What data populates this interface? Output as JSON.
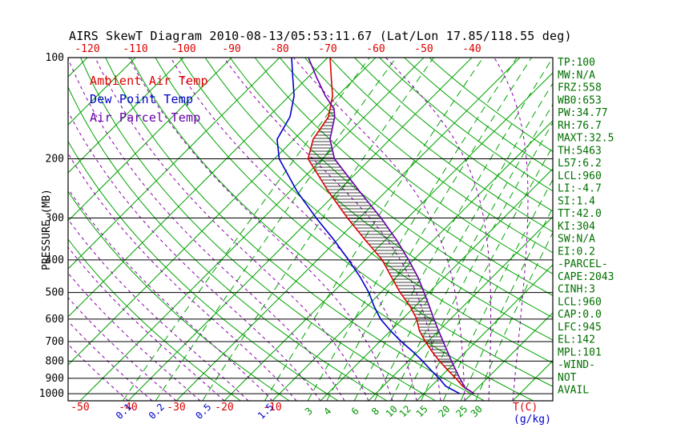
{
  "title": "AIRS SkewT Diagram 2010-08-13/05:53:11.67 (Lat/Lon 17.85/118.55 deg)",
  "legend": {
    "ambient": "Ambient Air Temp",
    "dewpoint": "Dew Point Temp",
    "parcel": "Air Parcel Temp"
  },
  "stats_panel": [
    "TP:100",
    "MW:N/A",
    "FRZ:558",
    "WB0:653",
    "PW:34.77",
    "RH:76.7",
    "MAXT:32.5",
    "TH:5463",
    "L57:6.2",
    "LCL:960",
    "LI:-4.7",
    "SI:1.4",
    "TT:42.0",
    "KI:304",
    "SW:N/A",
    "EI:0.2",
    "-PARCEL-",
    "CAPE:2043",
    "CINH:3",
    "LCL:960",
    "CAP:0.0",
    "LFC:945",
    "EL:142",
    "MPL:101",
    "-WIND-",
    "NOT",
    "AVAIL"
  ],
  "colors": {
    "ambient": "#dd0000",
    "dewpoint": "#0000cc",
    "parcel": "#6600aa",
    "isotherm": "#00a300",
    "dry_adiabat": "#00a300",
    "moist_adiabat": "#8800aa",
    "mixing_ratio": "#00a300",
    "pressure_line": "#000000",
    "axis": "#000000",
    "title": "#000000",
    "stats": "#007000",
    "pressure_label": "#000000",
    "top_temp_label": "#dd0000",
    "bottom_temp_label": "#dd0000",
    "mixing_label_small": "#0000cc",
    "mixing_label_large": "#009300",
    "mixing_unit_label": "#0000cc",
    "temp_unit_label": "#dd0000"
  },
  "chart_data": {
    "type": "line",
    "subtype": "skew-T log-P thermodynamic diagram",
    "ylabel": "PRESSURE (MB)",
    "xlabel": "T(C)",
    "mixing_unit": "(g/kg)",
    "pressure_range_mb": [
      100,
      1050
    ],
    "pressure_ticks_mb": [
      100,
      200,
      300,
      400,
      500,
      600,
      700,
      800,
      900,
      1000
    ],
    "top_temp_labels_c": [
      -120,
      -110,
      -100,
      -90,
      -80,
      -70,
      -60,
      -50,
      -40
    ],
    "bottom_temp_labels_c": [
      -50,
      -40,
      -30,
      -20,
      -10
    ],
    "isotherms_c": {
      "min": -120,
      "max": 40,
      "step": 10
    },
    "dry_adiabats_theta_k": {
      "min": 253,
      "max": 433,
      "step": 10
    },
    "moist_adiabats_start_c": {
      "min": -40,
      "max": 40,
      "step": 5
    },
    "mixing_ratio_lines_gkg": [
      0.1,
      0.2,
      0.5,
      1.5,
      3,
      4,
      6,
      8,
      10,
      12,
      15,
      20,
      25,
      30
    ],
    "mixing_ratio_labels_small_gkg": [
      0.1,
      0.2,
      0.5,
      1.5
    ],
    "mixing_ratio_labels_large_gkg": [
      3,
      4,
      6,
      8,
      10,
      12,
      15,
      20,
      25,
      30
    ],
    "series": [
      {
        "name": "Ambient Air Temp",
        "color_key": "ambient",
        "points_p_t": [
          [
            1000,
            30.5
          ],
          [
            950,
            26.5
          ],
          [
            900,
            23.5
          ],
          [
            850,
            20
          ],
          [
            800,
            16.5
          ],
          [
            750,
            13
          ],
          [
            700,
            9.5
          ],
          [
            650,
            6
          ],
          [
            600,
            3
          ],
          [
            550,
            -1
          ],
          [
            500,
            -6
          ],
          [
            450,
            -11
          ],
          [
            400,
            -16.5
          ],
          [
            350,
            -24
          ],
          [
            300,
            -32.5
          ],
          [
            250,
            -42
          ],
          [
            200,
            -53
          ],
          [
            175,
            -56
          ],
          [
            150,
            -57.5
          ],
          [
            130,
            -61
          ],
          [
            115,
            -65
          ],
          [
            100,
            -69.5
          ]
        ]
      },
      {
        "name": "Dew Point Temp",
        "color_key": "dewpoint",
        "points_p_t": [
          [
            1000,
            27.5
          ],
          [
            950,
            23
          ],
          [
            900,
            20
          ],
          [
            850,
            16.5
          ],
          [
            800,
            13
          ],
          [
            750,
            9
          ],
          [
            700,
            4.5
          ],
          [
            650,
            0
          ],
          [
            600,
            -4.5
          ],
          [
            550,
            -8.5
          ],
          [
            500,
            -12.5
          ],
          [
            450,
            -17.5
          ],
          [
            400,
            -23.5
          ],
          [
            350,
            -30.5
          ],
          [
            300,
            -39
          ],
          [
            250,
            -48.5
          ],
          [
            200,
            -59
          ],
          [
            175,
            -63.5
          ],
          [
            150,
            -65.5
          ],
          [
            130,
            -69
          ],
          [
            115,
            -73
          ],
          [
            100,
            -77.5
          ]
        ]
      },
      {
        "name": "Air Parcel Temp",
        "color_key": "parcel",
        "points_p_t": [
          [
            1000,
            30.5
          ],
          [
            960,
            27.3
          ],
          [
            950,
            26.9
          ],
          [
            900,
            24.3
          ],
          [
            850,
            21.7
          ],
          [
            800,
            19
          ],
          [
            750,
            16.2
          ],
          [
            700,
            13.2
          ],
          [
            650,
            10
          ],
          [
            600,
            6.6
          ],
          [
            550,
            3
          ],
          [
            500,
            -1
          ],
          [
            450,
            -5.5
          ],
          [
            400,
            -11
          ],
          [
            350,
            -17.5
          ],
          [
            300,
            -25.5
          ],
          [
            250,
            -35.5
          ],
          [
            200,
            -47.5
          ],
          [
            175,
            -52.5
          ],
          [
            150,
            -56.2
          ],
          [
            142,
            -58
          ],
          [
            130,
            -62.5
          ],
          [
            115,
            -68
          ],
          [
            100,
            -74
          ]
        ]
      }
    ],
    "cape_hatch_between_mb": [
      142,
      945
    ]
  }
}
